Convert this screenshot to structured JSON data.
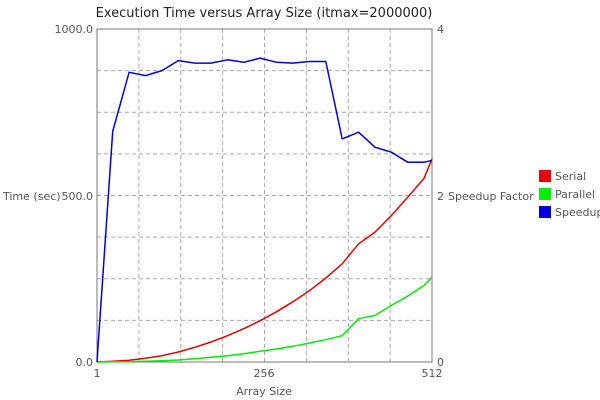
{
  "chart_data": {
    "type": "line",
    "title": "Execution Time versus Array Size (itmax=2000000)",
    "xlabel": "Array Size",
    "ylabel": "Time (sec)",
    "y2label": "Speedup Factor",
    "xlim": [
      1,
      512
    ],
    "ylim": [
      0,
      1000
    ],
    "y2lim": [
      0,
      4
    ],
    "x_ticks": [
      "1",
      "256",
      "512"
    ],
    "y_ticks": [
      "0.0",
      "500.0",
      "1000.0"
    ],
    "y2_ticks": [
      "0",
      "2",
      "4"
    ],
    "grid": true,
    "legend_position": "right",
    "x": [
      1,
      25,
      50,
      75,
      100,
      125,
      150,
      175,
      200,
      225,
      250,
      275,
      300,
      325,
      350,
      375,
      400,
      425,
      450,
      475,
      500,
      512
    ],
    "series": [
      {
        "name": "Serial",
        "axis": "left",
        "color": "#e80000",
        "values": [
          0,
          2,
          5,
          11,
          19,
          30,
          44,
          60,
          79,
          100,
          124,
          151,
          181,
          214,
          252,
          295,
          355,
          390,
          440,
          495,
          552,
          610
        ]
      },
      {
        "name": "Parallel",
        "axis": "left",
        "color": "#00ee00",
        "values": [
          0,
          1,
          1,
          2,
          4,
          6,
          10,
          14,
          19,
          25,
          32,
          39,
          47,
          57,
          67,
          79,
          130,
          140,
          170,
          198,
          230,
          255
        ]
      },
      {
        "name": "Speedup",
        "axis": "right",
        "color": "#0000dd",
        "values": [
          0,
          2.77,
          3.48,
          3.44,
          3.5,
          3.62,
          3.59,
          3.59,
          3.63,
          3.6,
          3.65,
          3.6,
          3.59,
          3.61,
          3.61,
          2.68,
          2.76,
          2.58,
          2.52,
          2.4,
          2.4,
          2.42
        ]
      }
    ]
  }
}
